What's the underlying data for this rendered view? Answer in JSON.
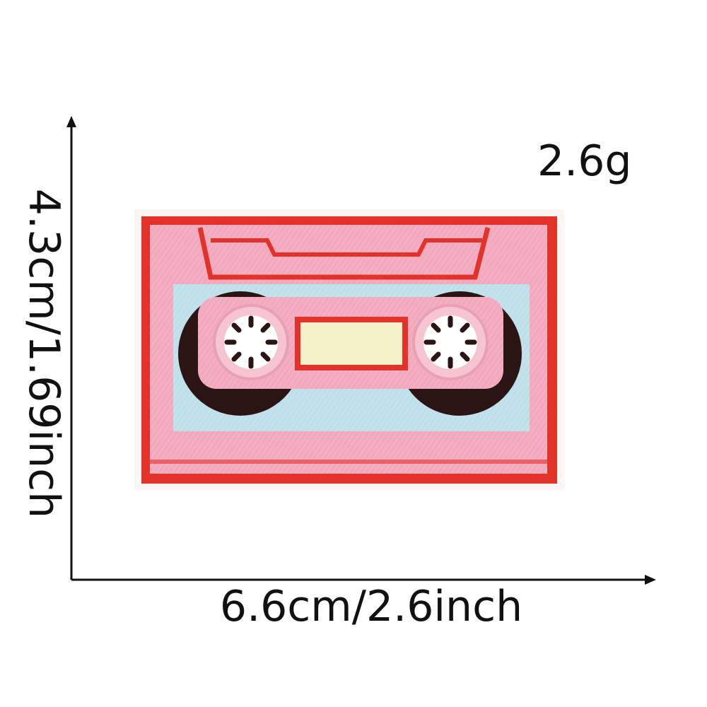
{
  "product": {
    "name": "cassette-tape-embroidered-patch",
    "weight": "2.6g",
    "width": "6.6cm/2.6inch",
    "height": "4.3cm/1.69inch"
  },
  "colors": {
    "background": "#ffffff",
    "patch_pink": "#f2a9bd",
    "border_red": "#e3322a",
    "label_blue": "#bfe0ea",
    "reel_black": "#2a1414",
    "window_cream": "#f4f0c8",
    "dimension_line": "#111111"
  }
}
